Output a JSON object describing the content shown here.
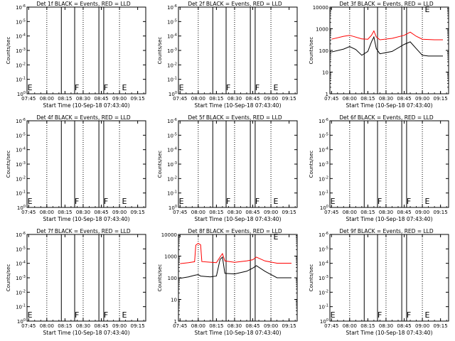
{
  "figure_colors": {
    "events": "#000000",
    "lld": "#ff0000",
    "background": "#ffffff"
  },
  "chart_data": [
    {
      "type": "line",
      "title": "Det 1f BLACK = Events, RED = LLD",
      "xlabel": "Start Time (10-Sep-18 07:43:40)",
      "ylabel": "Counts/sec",
      "x_ticks": [
        "07:45",
        "08:00",
        "08:15",
        "08:30",
        "08:45",
        "09:00",
        "09:15"
      ],
      "y_ticks": [
        "10^0",
        "10^-1",
        "10^-2",
        "10^-3",
        "10^-4",
        "10^-5",
        "10^-6"
      ],
      "ylim": [
        "10^0",
        "10^-6"
      ],
      "dotted_vlines": [
        "08:00",
        "08:30",
        "09:00"
      ],
      "solid_vlines": [
        "08:12",
        "08:23",
        "08:43",
        "08:47"
      ],
      "markers": [
        {
          "label": "E",
          "x": "07:44"
        },
        {
          "label": "F",
          "x": "08:23"
        },
        {
          "label": "F",
          "x": "08:47"
        },
        {
          "label": "E",
          "x": "09:02"
        }
      ],
      "series": []
    },
    {
      "type": "line",
      "title": "Det 2f BLACK = Events, RED = LLD",
      "xlabel": "Start Time (10-Sep-18 07:43:40)",
      "ylabel": "Counts/sec",
      "x_ticks": [
        "07:45",
        "08:00",
        "08:15",
        "08:30",
        "08:45",
        "09:00",
        "09:15"
      ],
      "y_ticks": [
        "10^0",
        "10^-1",
        "10^-2",
        "10^-3",
        "10^-4",
        "10^-5",
        "10^-6"
      ],
      "ylim": [
        "10^0",
        "10^-6"
      ],
      "dotted_vlines": [
        "08:00",
        "08:30",
        "09:00"
      ],
      "solid_vlines": [
        "08:12",
        "08:23",
        "08:43",
        "08:47"
      ],
      "markers": [
        {
          "label": "E",
          "x": "07:44"
        },
        {
          "label": "F",
          "x": "08:23"
        },
        {
          "label": "F",
          "x": "08:47"
        },
        {
          "label": "E",
          "x": "09:02"
        }
      ],
      "series": []
    },
    {
      "type": "line",
      "title": "Det 3f BLACK = Events, RED = LLD",
      "xlabel": "Start Time (10-Sep-18 07:43:40)",
      "ylabel": "Counts/sec",
      "x_ticks": [
        "07:45",
        "08:00",
        "08:15",
        "08:30",
        "08:45",
        "09:00",
        "09:15"
      ],
      "y_ticks": [
        "1",
        "10",
        "100",
        "1000",
        "10000"
      ],
      "ylim": [
        1,
        10000
      ],
      "log_y": true,
      "dotted_vlines": [
        "08:00",
        "08:30",
        "09:00"
      ],
      "solid_vlines": [
        "08:12",
        "08:23",
        "08:43",
        "08:47"
      ],
      "markers": [
        {
          "label": "E",
          "x": "09:02"
        }
      ],
      "series": [
        {
          "color": "#ff0000",
          "x": [
            "07:45",
            "07:55",
            "08:00",
            "08:10",
            "08:15",
            "08:18",
            "08:20",
            "08:22",
            "08:25",
            "08:35",
            "08:45",
            "08:50",
            "08:55",
            "09:00",
            "09:10",
            "09:17"
          ],
          "values": [
            330,
            450,
            500,
            340,
            330,
            500,
            800,
            420,
            310,
            360,
            500,
            700,
            450,
            330,
            310,
            310
          ]
        },
        {
          "color": "#000000",
          "x": [
            "07:45",
            "07:55",
            "08:00",
            "08:05",
            "08:10",
            "08:15",
            "08:18",
            "08:20",
            "08:22",
            "08:25",
            "08:35",
            "08:45",
            "08:50",
            "08:55",
            "09:00",
            "09:05",
            "09:10",
            "09:17"
          ],
          "values": [
            85,
            115,
            150,
            110,
            60,
            90,
            250,
            420,
            120,
            70,
            90,
            190,
            250,
            120,
            60,
            55,
            55,
            55
          ]
        }
      ]
    },
    {
      "type": "line",
      "title": "Det 4f BLACK = Events, RED = LLD",
      "xlabel": "Start Time (10-Sep-18 07:43:40)",
      "ylabel": "Counts/sec",
      "x_ticks": [
        "07:45",
        "08:00",
        "08:15",
        "08:30",
        "08:45",
        "09:00",
        "09:15"
      ],
      "y_ticks": [
        "10^0",
        "10^-1",
        "10^-2",
        "10^-3",
        "10^-4",
        "10^-5",
        "10^-6"
      ],
      "ylim": [
        "10^0",
        "10^-6"
      ],
      "dotted_vlines": [
        "08:00",
        "08:30",
        "09:00"
      ],
      "solid_vlines": [
        "08:12",
        "08:23",
        "08:43",
        "08:47"
      ],
      "markers": [
        {
          "label": "E",
          "x": "07:44"
        },
        {
          "label": "F",
          "x": "08:23"
        },
        {
          "label": "F",
          "x": "08:47"
        },
        {
          "label": "E",
          "x": "09:02"
        }
      ],
      "series": []
    },
    {
      "type": "line",
      "title": "Det 5f BLACK = Events, RED = LLD",
      "xlabel": "Start Time (10-Sep-18 07:43:40)",
      "ylabel": "Counts/sec",
      "x_ticks": [
        "07:45",
        "08:00",
        "08:15",
        "08:30",
        "08:45",
        "09:00",
        "09:15"
      ],
      "y_ticks": [
        "10^0",
        "10^-1",
        "10^-2",
        "10^-3",
        "10^-4",
        "10^-5",
        "10^-6"
      ],
      "ylim": [
        "10^0",
        "10^-6"
      ],
      "dotted_vlines": [
        "08:00",
        "08:30",
        "09:00"
      ],
      "solid_vlines": [
        "08:12",
        "08:23",
        "08:43",
        "08:47"
      ],
      "markers": [
        {
          "label": "E",
          "x": "07:44"
        },
        {
          "label": "F",
          "x": "08:23"
        },
        {
          "label": "F",
          "x": "08:47"
        },
        {
          "label": "E",
          "x": "09:02"
        }
      ],
      "series": []
    },
    {
      "type": "line",
      "title": "Det 6f BLACK = Events, RED = LLD",
      "xlabel": "Start Time (10-Sep-18 07:43:40)",
      "ylabel": "Counts/sec",
      "x_ticks": [
        "07:45",
        "08:00",
        "08:15",
        "08:30",
        "08:45",
        "09:00",
        "09:15"
      ],
      "y_ticks": [
        "10^0",
        "10^-1",
        "10^-2",
        "10^-3",
        "10^-4",
        "10^-5",
        "10^-6"
      ],
      "ylim": [
        "10^0",
        "10^-6"
      ],
      "dotted_vlines": [
        "08:00",
        "08:30",
        "09:00"
      ],
      "solid_vlines": [
        "08:12",
        "08:23",
        "08:43",
        "08:47"
      ],
      "markers": [
        {
          "label": "E",
          "x": "07:44"
        },
        {
          "label": "F",
          "x": "08:23"
        },
        {
          "label": "F",
          "x": "08:47"
        },
        {
          "label": "E",
          "x": "09:02"
        }
      ],
      "series": []
    },
    {
      "type": "line",
      "title": "Det 7f BLACK = Events, RED = LLD",
      "xlabel": "Start Time (10-Sep-18 07:43:40)",
      "ylabel": "Counts/sec",
      "x_ticks": [
        "07:45",
        "08:00",
        "08:15",
        "08:30",
        "08:45",
        "09:00",
        "09:15"
      ],
      "y_ticks": [
        "10^0",
        "10^-1",
        "10^-2",
        "10^-3",
        "10^-4",
        "10^-5",
        "10^-6"
      ],
      "ylim": [
        "10^0",
        "10^-6"
      ],
      "dotted_vlines": [
        "08:00",
        "08:30",
        "09:00"
      ],
      "solid_vlines": [
        "08:12",
        "08:23",
        "08:43",
        "08:47"
      ],
      "markers": [
        {
          "label": "E",
          "x": "07:44"
        },
        {
          "label": "F",
          "x": "08:23"
        },
        {
          "label": "F",
          "x": "08:47"
        },
        {
          "label": "E",
          "x": "09:02"
        }
      ],
      "series": []
    },
    {
      "type": "line",
      "title": "Det 8f BLACK = Events, RED = LLD",
      "xlabel": "Start Time (10-Sep-18 07:43:40)",
      "ylabel": "Counts/sec",
      "x_ticks": [
        "07:45",
        "08:00",
        "08:15",
        "08:30",
        "08:45",
        "09:00",
        "09:15"
      ],
      "y_ticks": [
        "1",
        "10",
        "100",
        "1000",
        "10000"
      ],
      "ylim": [
        1,
        10000
      ],
      "log_y": true,
      "dotted_vlines": [
        "08:00",
        "08:30",
        "09:00"
      ],
      "solid_vlines": [
        "08:12",
        "08:23",
        "08:43",
        "08:47"
      ],
      "markers": [
        {
          "label": "E",
          "x": "09:02"
        }
      ],
      "series": [
        {
          "color": "#ff0000",
          "x": [
            "07:45",
            "07:52",
            "07:57",
            "07:58",
            "08:00",
            "08:02",
            "08:03",
            "08:08",
            "08:15",
            "08:18",
            "08:20",
            "08:22",
            "08:30",
            "08:40",
            "08:45",
            "08:48",
            "08:55",
            "09:05",
            "09:17"
          ],
          "values": [
            450,
            500,
            550,
            3200,
            3900,
            3300,
            560,
            530,
            500,
            900,
            1300,
            600,
            520,
            600,
            680,
            900,
            600,
            470,
            470
          ]
        },
        {
          "color": "#000000",
          "x": [
            "07:45",
            "07:52",
            "07:57",
            "08:00",
            "08:02",
            "08:10",
            "08:15",
            "08:18",
            "08:20",
            "08:22",
            "08:30",
            "08:40",
            "08:45",
            "08:48",
            "08:55",
            "09:05",
            "09:17"
          ],
          "values": [
            95,
            110,
            130,
            140,
            120,
            110,
            120,
            700,
            900,
            160,
            150,
            200,
            280,
            360,
            200,
            100,
            100
          ]
        }
      ]
    },
    {
      "type": "line",
      "title": "Det 9f BLACK = Events, RED = LLD",
      "xlabel": "Start Time (10-Sep-18 07:43:40)",
      "ylabel": "Counts/sec",
      "x_ticks": [
        "07:45",
        "08:00",
        "08:15",
        "08:30",
        "08:45",
        "09:00",
        "09:15"
      ],
      "y_ticks": [
        "10^0",
        "10^-1",
        "10^-2",
        "10^-3",
        "10^-4",
        "10^-5",
        "10^-6"
      ],
      "ylim": [
        "10^0",
        "10^-6"
      ],
      "dotted_vlines": [
        "08:00",
        "08:30",
        "09:00"
      ],
      "solid_vlines": [
        "08:12",
        "08:23",
        "08:43",
        "08:47"
      ],
      "markers": [
        {
          "label": "E",
          "x": "07:44"
        },
        {
          "label": "F",
          "x": "08:23"
        },
        {
          "label": "F",
          "x": "08:47"
        },
        {
          "label": "E",
          "x": "09:02"
        }
      ],
      "series": []
    }
  ]
}
